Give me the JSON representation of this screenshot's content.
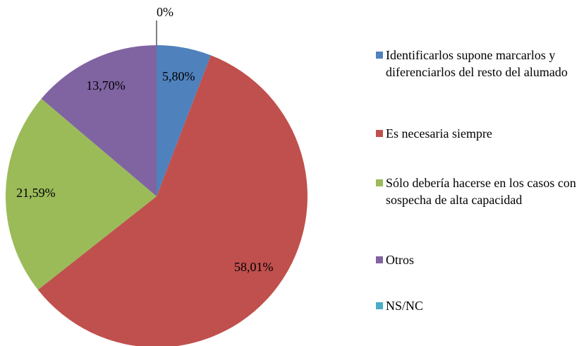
{
  "chart_data": {
    "type": "pie",
    "categories": [
      "Identificarlos supone marcarlos y diferenciarlos del resto del alumado",
      "Es necesaria siempre",
      "Sólo debería hacerse en los casos con sospecha de alta capacidad",
      "Otros",
      "NS/NC"
    ],
    "values": [
      5.8,
      58.01,
      21.59,
      13.7,
      0
    ],
    "value_labels": [
      "5,80%",
      "58,01%",
      "21,59%",
      "13,70%",
      "0%"
    ],
    "colors": [
      "#4f81bd",
      "#c0504d",
      "#9bbb59",
      "#8064a2",
      "#4bacc6"
    ]
  }
}
